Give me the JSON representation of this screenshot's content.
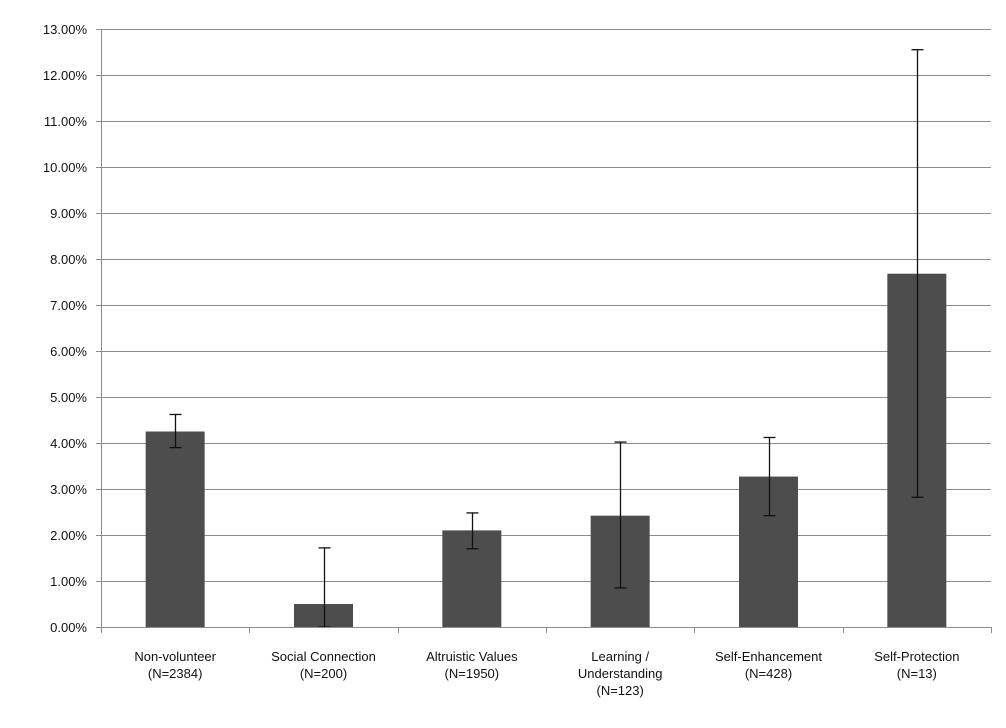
{
  "chart_data": {
    "type": "bar",
    "title": "",
    "xlabel": "",
    "ylabel": "",
    "ylim": [
      0,
      13
    ],
    "y_tick_step": 1,
    "y_tick_suffix": "%",
    "y_tick_decimals": 2,
    "grid": true,
    "legend": "none",
    "categories": [
      [
        "Non-volunteer",
        "(N=2384)"
      ],
      [
        "Social Connection",
        "(N=200)"
      ],
      [
        "Altruistic Values",
        "(N=1950)"
      ],
      [
        "Learning /",
        "Understanding",
        "(N=123)"
      ],
      [
        "Self-Enhancement",
        "(N=428)"
      ],
      [
        "Self-Protection",
        "(N=13)"
      ]
    ],
    "values": [
      4.25,
      0.5,
      2.1,
      2.42,
      3.27,
      7.68
    ],
    "error_bars": [
      [
        3.9,
        4.62
      ],
      [
        0.0,
        1.72
      ],
      [
        1.7,
        2.48
      ],
      [
        0.85,
        4.02
      ],
      [
        2.42,
        4.12
      ],
      [
        2.82,
        12.55
      ]
    ],
    "colors": {
      "bar": "#4d4d4d",
      "grid": "#8c8c8c",
      "axis": "#8c8c8c",
      "error_bar": "#111111",
      "text": "#111111"
    }
  }
}
